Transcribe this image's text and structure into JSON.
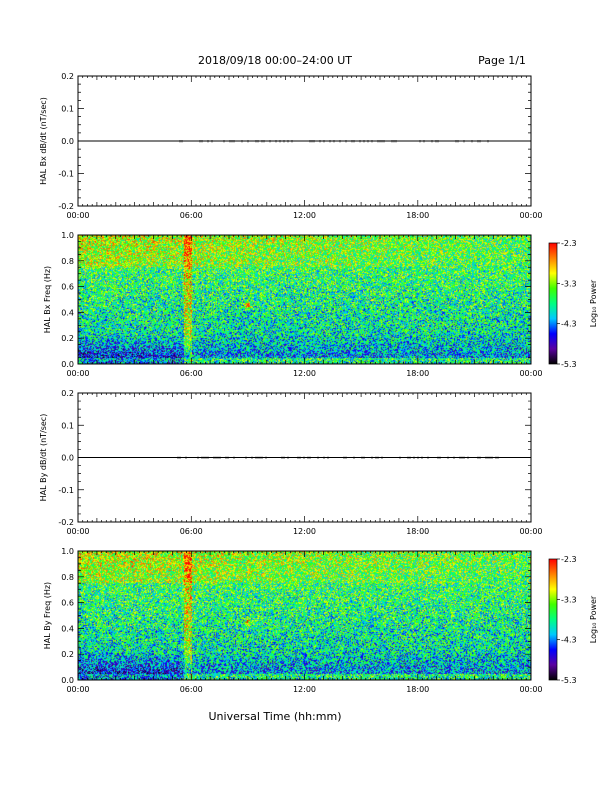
{
  "header": {
    "title": "2018/09/18   00:00–24:00 UT",
    "page": "Page 1/1"
  },
  "xaxis": {
    "label": "Universal Time (hh:mm)",
    "ticks": [
      "00:00",
      "06:00",
      "12:00",
      "18:00",
      "00:00"
    ],
    "range_hours": [
      0,
      24
    ]
  },
  "colorbar": {
    "label": "Log₁₀ Power",
    "ticks": [
      "-2.3",
      "-3.3",
      "-4.3",
      "-5.3"
    ],
    "range": [
      -5.3,
      -2.3
    ],
    "colormap": [
      "#000000",
      "#5a00a0",
      "#0000ff",
      "#00c8ff",
      "#00ff80",
      "#40ff00",
      "#ffff00",
      "#ff8000",
      "#ff0000"
    ]
  },
  "chart_data": [
    {
      "type": "line",
      "title": "",
      "ylabel": "HAL Bx dB/dt (nT/sec)",
      "xlabel": "",
      "ylim": [
        -0.2,
        0.2
      ],
      "yticks": [
        "0.2",
        "0.1",
        "0.0",
        "-0.1",
        "-0.2"
      ],
      "x": [
        0,
        6,
        12,
        18,
        24
      ],
      "values": [
        0.0,
        0.0,
        0.0,
        0.0,
        0.0
      ],
      "color": "#000000"
    },
    {
      "type": "heatmap",
      "title": "",
      "ylabel": "HAL Bx Freq (Hz)",
      "xlabel": "",
      "ylim": [
        0.0,
        1.0
      ],
      "yticks": [
        "1.0",
        "0.8",
        "0.6",
        "0.4",
        "0.2",
        "0.0"
      ],
      "xlim": [
        0,
        24
      ],
      "zlim": [
        -5.3,
        -2.3
      ],
      "features": [
        "broadband enhancement near 05:50 UT",
        "spot near 0.45 Hz at 09:00 UT"
      ]
    },
    {
      "type": "line",
      "title": "",
      "ylabel": "HAL By dB/dt (nT/sec)",
      "xlabel": "",
      "ylim": [
        -0.2,
        0.2
      ],
      "yticks": [
        "0.2",
        "0.1",
        "0.0",
        "-0.1",
        "-0.2"
      ],
      "x": [
        0,
        6,
        12,
        18,
        24
      ],
      "values": [
        0.0,
        0.0,
        0.0,
        0.0,
        0.0
      ],
      "color": "#000000"
    },
    {
      "type": "heatmap",
      "title": "",
      "ylabel": "HAL By Freq (Hz)",
      "xlabel": "",
      "ylim": [
        0.0,
        1.0
      ],
      "yticks": [
        "1.0",
        "0.8",
        "0.6",
        "0.4",
        "0.2",
        "0.0"
      ],
      "xlim": [
        0,
        24
      ],
      "zlim": [
        -5.3,
        -2.3
      ],
      "features": [
        "broadband enhancement near 05:50 UT",
        "spot near 0.45 Hz at 09:00 UT"
      ]
    }
  ]
}
